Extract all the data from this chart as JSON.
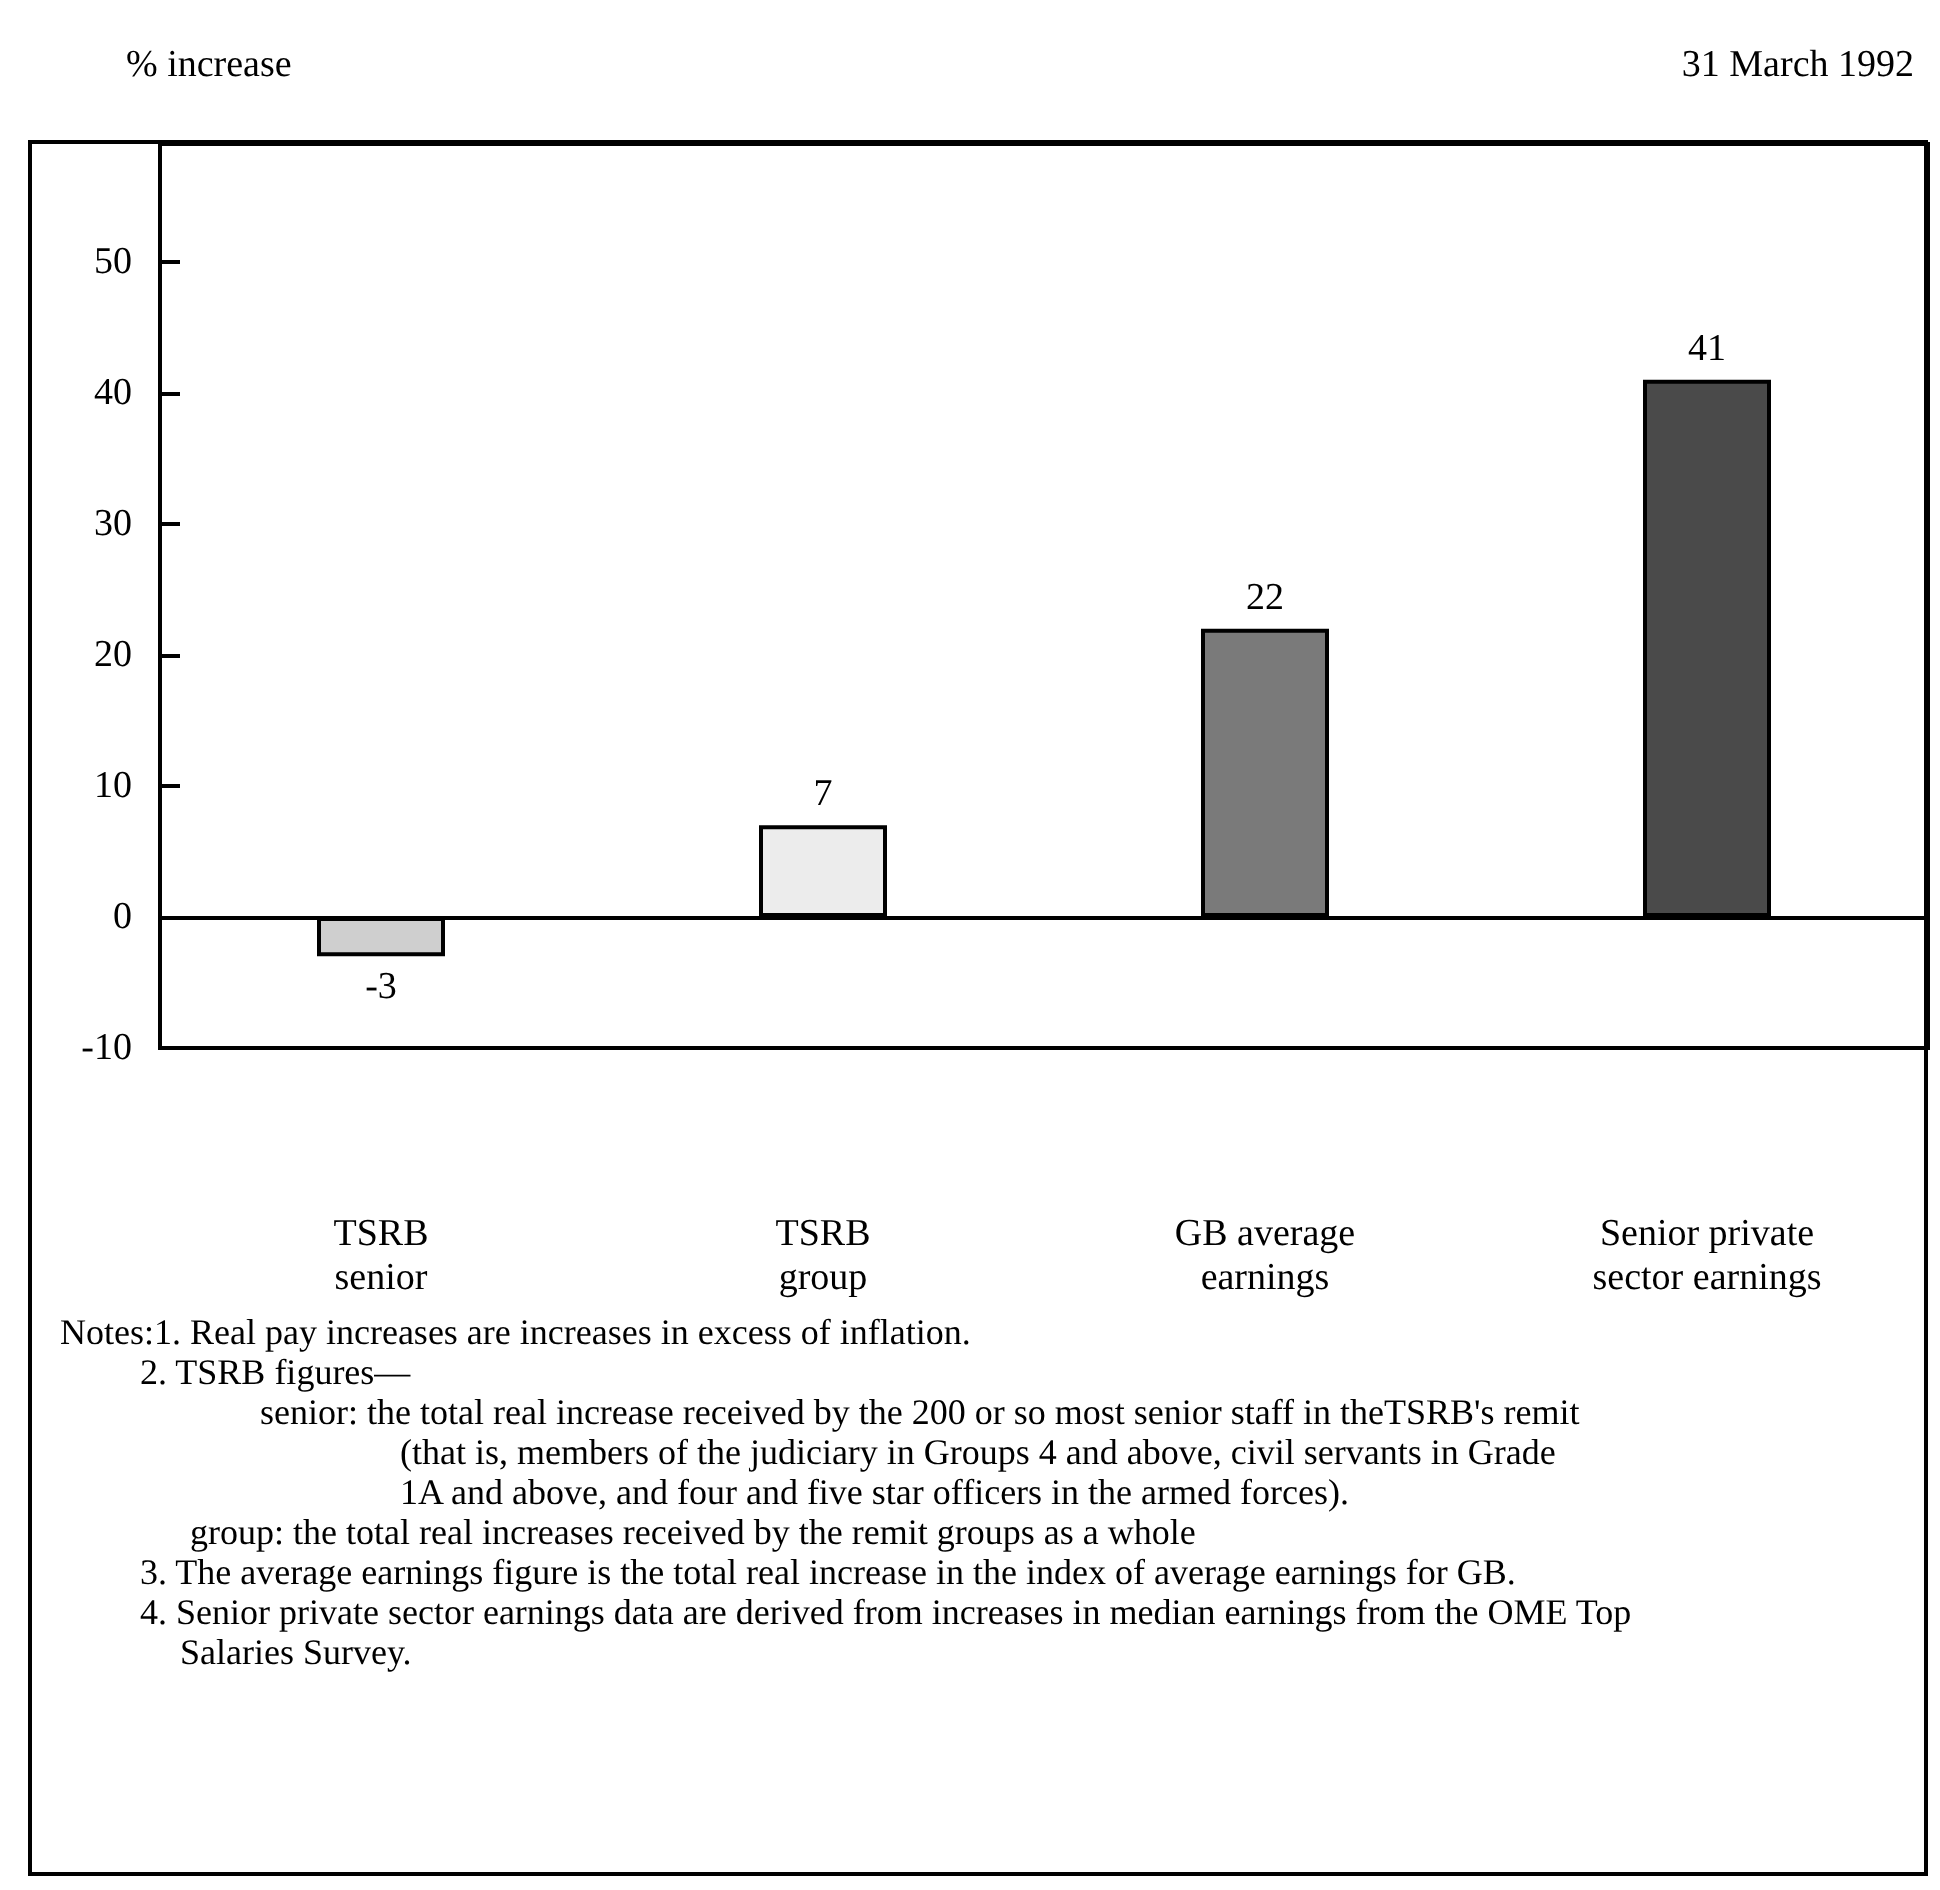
{
  "chart_data": {
    "type": "bar",
    "title": "% increase",
    "subtitle": "31 March 1992",
    "categories": [
      "TSRB\nsenior",
      "TSRB\ngroup",
      "GB average\nearnings",
      "Senior private\nsector earnings"
    ],
    "values": [
      -3,
      7,
      22,
      41
    ],
    "colors": [
      "#cfcfcf",
      "#ececec",
      "#7a7a7a",
      "#4a4a4a"
    ],
    "data_labels": true,
    "ylim": [
      -10,
      59
    ],
    "yticks": [
      -10,
      0,
      10,
      20,
      30,
      40,
      50
    ],
    "annotations": [
      "Notes:1. Real pay increases are increases in excess of inflation.",
      "2. TSRB figures—",
      "senior: the total real increase received by the 200 or so most senior staff in theTSRB's remit (that is, members of the judiciary in Groups 4 and above, civil servants in Grade 1A and above, and four and five star officers in the armed forces).",
      "group: the total real increases received by the remit groups as a whole",
      "3. The average earnings figure is the total real increase in the index of average earnings for GB.",
      "4. Senior private sector earnings data are derived from increases in median earnings from the OME Top Salaries Survey."
    ]
  }
}
